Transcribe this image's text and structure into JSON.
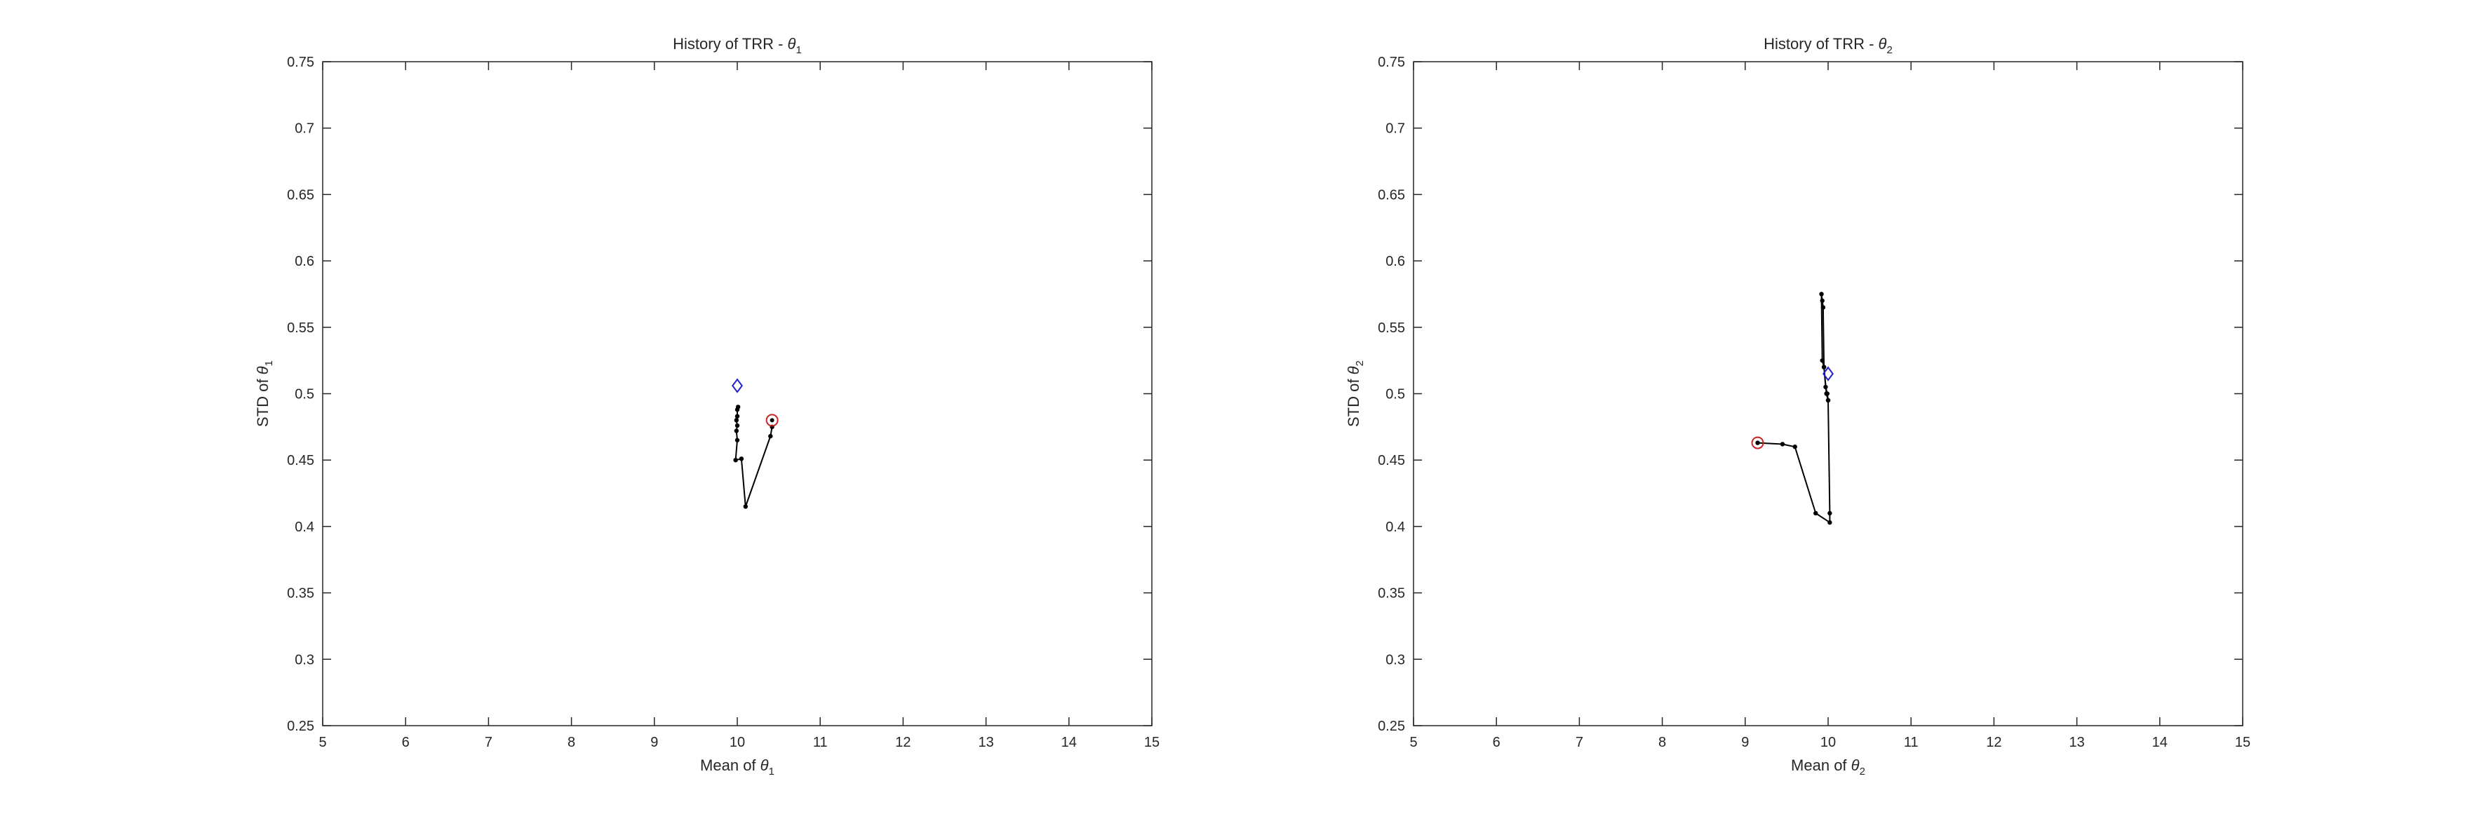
{
  "chart_data": [
    {
      "type": "line",
      "title": "History of TRR - ",
      "title_symbol": "θ",
      "title_sub": "1",
      "xlabel": "Mean of ",
      "xlabel_symbol": "θ",
      "xlabel_sub": "1",
      "ylabel": "STD of ",
      "ylabel_symbol": "θ",
      "ylabel_sub": "1",
      "xlim": [
        5,
        15
      ],
      "ylim": [
        0.25,
        0.75
      ],
      "xticks": [
        "5",
        "6",
        "7",
        "8",
        "9",
        "10",
        "11",
        "12",
        "13",
        "14",
        "15"
      ],
      "yticks": [
        "0.25",
        "0.3",
        "0.35",
        "0.4",
        "0.45",
        "0.5",
        "0.55",
        "0.6",
        "0.65",
        "0.7",
        "0.75"
      ],
      "grid": false,
      "series": [
        {
          "marker": "dot",
          "color": "#000000",
          "x": [
            10.42,
            10.4,
            10.1,
            10.05,
            9.98,
            10.0,
            9.99,
            10.0,
            9.99,
            10.0,
            10.0,
            10.01
          ],
          "y": [
            0.475,
            0.468,
            0.415,
            0.451,
            0.45,
            0.465,
            0.472,
            0.476,
            0.48,
            0.483,
            0.488,
            0.49
          ]
        }
      ],
      "start_marker": {
        "shape": "circle",
        "color": "#cc2222",
        "x": 10.42,
        "y": 0.48
      },
      "target_marker": {
        "shape": "diamond",
        "color": "#2222cc",
        "x": 10.0,
        "y": 0.506
      }
    },
    {
      "type": "line",
      "title": "History of TRR - ",
      "title_symbol": "θ",
      "title_sub": "2",
      "xlabel": "Mean of ",
      "xlabel_symbol": "θ",
      "xlabel_sub": "2",
      "ylabel": "STD of ",
      "ylabel_symbol": "θ",
      "ylabel_sub": "2",
      "xlim": [
        5,
        15
      ],
      "ylim": [
        0.25,
        0.75
      ],
      "xticks": [
        "5",
        "6",
        "7",
        "8",
        "9",
        "10",
        "11",
        "12",
        "13",
        "14",
        "15"
      ],
      "yticks": [
        "0.25",
        "0.3",
        "0.35",
        "0.4",
        "0.45",
        "0.5",
        "0.55",
        "0.6",
        "0.65",
        "0.7",
        "0.75"
      ],
      "grid": false,
      "series": [
        {
          "marker": "dot",
          "color": "#000000",
          "x": [
            9.15,
            9.45,
            9.6,
            9.85,
            10.02,
            10.02,
            10.0,
            9.98,
            9.95,
            9.93,
            9.92,
            9.93,
            9.94,
            9.95,
            9.97,
            9.99,
            10.0
          ],
          "y": [
            0.463,
            0.462,
            0.46,
            0.41,
            0.403,
            0.41,
            0.495,
            0.5,
            0.52,
            0.525,
            0.575,
            0.57,
            0.565,
            0.52,
            0.505,
            0.5,
            0.495
          ]
        }
      ],
      "start_marker": {
        "shape": "circle",
        "color": "#cc2222",
        "x": 9.15,
        "y": 0.463
      },
      "target_marker": {
        "shape": "diamond",
        "color": "#2222cc",
        "x": 10.0,
        "y": 0.515
      }
    }
  ]
}
